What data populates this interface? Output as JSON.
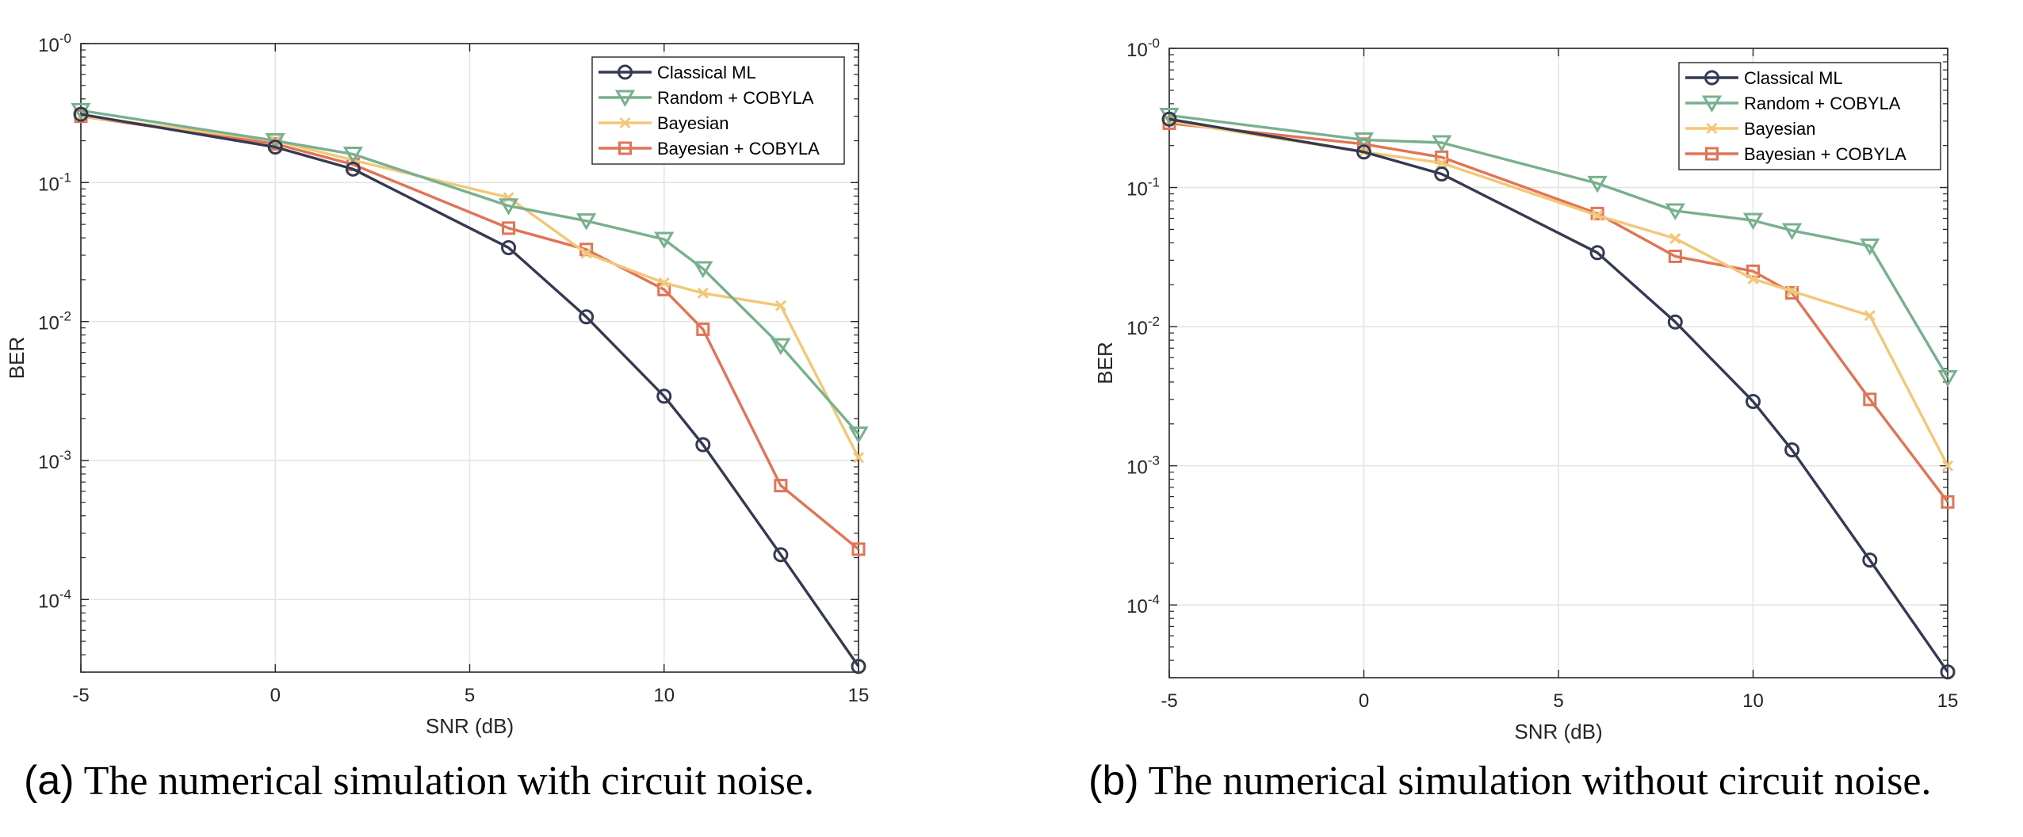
{
  "chart_data": [
    {
      "type": "line",
      "title": "",
      "xlabel": "SNR (dB)",
      "ylabel": "BER",
      "xlim": [
        -5,
        15
      ],
      "ylim": [
        3e-05,
        1
      ],
      "yscale": "log",
      "xticks": [
        "-5",
        "0",
        "5",
        "10",
        "15"
      ],
      "yticks": [
        {
          "base": "10",
          "exp": "-0"
        },
        {
          "base": "10",
          "exp": "-1"
        },
        {
          "base": "10",
          "exp": "-2"
        },
        {
          "base": "10",
          "exp": "-3"
        },
        {
          "base": "10",
          "exp": "-4"
        }
      ],
      "grid": true,
      "legend": "top-right",
      "series": [
        {
          "name": "Classical ML",
          "color": "#353a52",
          "marker": "circle",
          "x": [
            -5,
            0,
            2,
            6,
            8,
            10,
            11,
            13,
            15
          ],
          "y": [
            0.31,
            0.18,
            0.125,
            0.034,
            0.0108,
            0.0029,
            0.0013,
            0.00021,
            3.3e-05
          ]
        },
        {
          "name": "Random + COBYLA",
          "color": "#78b08e",
          "marker": "triangle-down",
          "x": [
            -5,
            0,
            2,
            6,
            8,
            10,
            11,
            13,
            15
          ],
          "y": [
            0.33,
            0.2,
            0.16,
            0.068,
            0.053,
            0.039,
            0.024,
            0.0067,
            0.00155
          ]
        },
        {
          "name": "Bayesian",
          "color": "#f3c779",
          "marker": "x",
          "x": [
            -5,
            0,
            2,
            6,
            8,
            10,
            11,
            13,
            15
          ],
          "y": [
            0.3,
            0.2,
            0.145,
            0.078,
            0.031,
            0.019,
            0.016,
            0.013,
            0.00105
          ]
        },
        {
          "name": "Bayesian + COBYLA",
          "color": "#e07456",
          "marker": "square",
          "x": [
            -5,
            0,
            2,
            6,
            8,
            10,
            11,
            13,
            15
          ],
          "y": [
            0.3,
            0.19,
            0.135,
            0.047,
            0.033,
            0.017,
            0.0088,
            0.00066,
            0.00023
          ]
        }
      ]
    },
    {
      "type": "line",
      "title": "",
      "xlabel": "SNR (dB)",
      "ylabel": "BER",
      "xlim": [
        -5,
        15
      ],
      "ylim": [
        3e-05,
        1
      ],
      "yscale": "log",
      "xticks": [
        "-5",
        "0",
        "5",
        "10",
        "15"
      ],
      "yticks": [
        {
          "base": "10",
          "exp": "-0"
        },
        {
          "base": "10",
          "exp": "-1"
        },
        {
          "base": "10",
          "exp": "-2"
        },
        {
          "base": "10",
          "exp": "-3"
        },
        {
          "base": "10",
          "exp": "-4"
        }
      ],
      "grid": true,
      "legend": "top-right",
      "series": [
        {
          "name": "Classical ML",
          "color": "#353a52",
          "marker": "circle",
          "x": [
            -5,
            0,
            2,
            6,
            8,
            10,
            11,
            13,
            15
          ],
          "y": [
            0.31,
            0.18,
            0.125,
            0.034,
            0.0108,
            0.0029,
            0.0013,
            0.00021,
            3.3e-05
          ]
        },
        {
          "name": "Random + COBYLA",
          "color": "#78b08e",
          "marker": "triangle-down",
          "x": [
            -5,
            0,
            2,
            6,
            8,
            10,
            11,
            13,
            15
          ],
          "y": [
            0.33,
            0.22,
            0.21,
            0.107,
            0.068,
            0.058,
            0.049,
            0.038,
            0.0043
          ]
        },
        {
          "name": "Bayesian",
          "color": "#f3c779",
          "marker": "x",
          "x": [
            -5,
            0,
            2,
            6,
            8,
            10,
            11,
            13,
            15
          ],
          "y": [
            0.3,
            0.18,
            0.15,
            0.063,
            0.043,
            0.022,
            0.018,
            0.012,
            0.001
          ]
        },
        {
          "name": "Bayesian + COBYLA",
          "color": "#e07456",
          "marker": "square",
          "x": [
            -5,
            0,
            2,
            6,
            8,
            10,
            11,
            13,
            15
          ],
          "y": [
            0.29,
            0.205,
            0.165,
            0.065,
            0.032,
            0.025,
            0.0175,
            0.003,
            0.00055
          ]
        }
      ]
    }
  ],
  "captions": [
    {
      "tag": "(a)",
      "text": " The numerical simulation with circuit noise."
    },
    {
      "tag": "(b)",
      "text": " The numerical simulation without circuit noise."
    }
  ]
}
